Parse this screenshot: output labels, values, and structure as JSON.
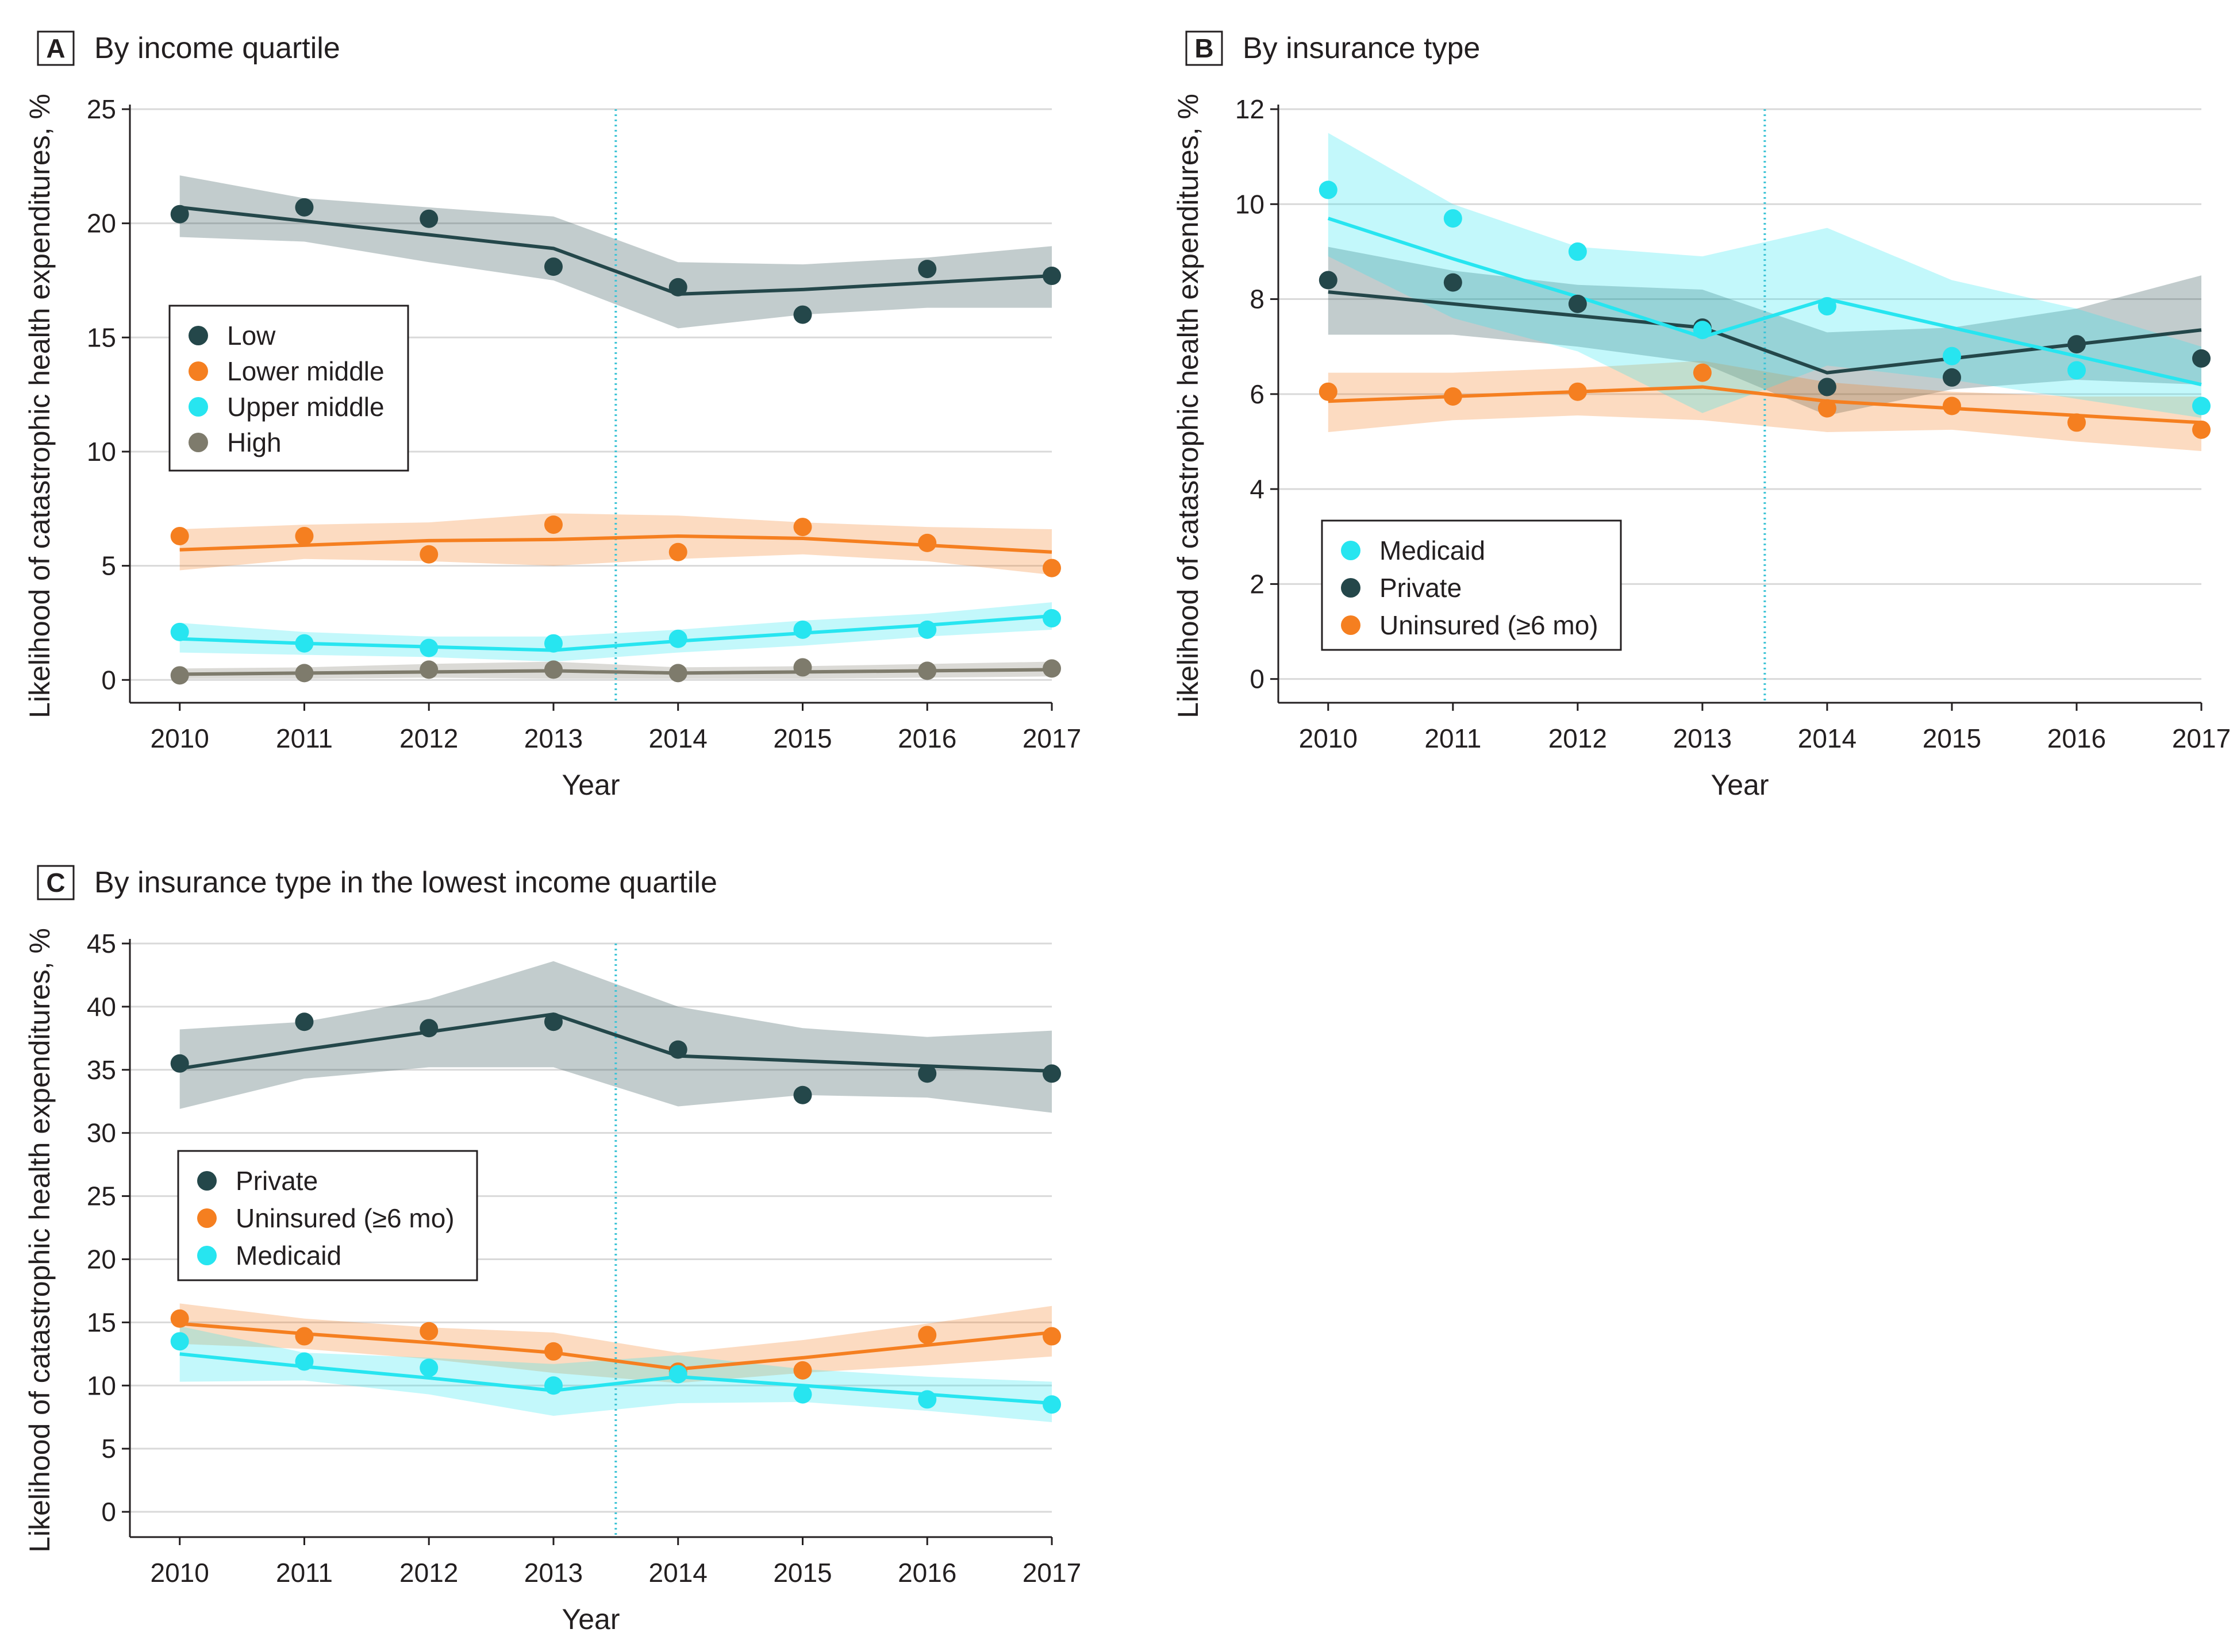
{
  "colors": {
    "low": "#24474a",
    "lower_middle": "#f57f20",
    "upper_middle": "#27e5f0",
    "high": "#7e7b6c",
    "private": "#24474a",
    "uninsured": "#f57f20",
    "medicaid": "#27e5f0",
    "vline": "#3fc4d6",
    "grid": "#d9d9d9",
    "axis": "#231f20"
  },
  "chart_data": [
    {
      "id": "A",
      "letter": "A",
      "type": "scatter",
      "title": "By income quartile",
      "xlabel": "Year",
      "ylabel": "Likelihood of catastrophic health expenditures, %",
      "x": [
        2010,
        2011,
        2012,
        2013,
        2014,
        2015,
        2016,
        2017
      ],
      "xlim": [
        2009.6,
        2017
      ],
      "ylim": [
        -1,
        25
      ],
      "yticks": [
        0,
        5,
        10,
        15,
        20,
        25
      ],
      "policy_line_x": 2013.5,
      "legend_position": "middle-left",
      "series": [
        {
          "key": "low",
          "name": "Low",
          "points": [
            20.4,
            20.7,
            20.2,
            18.1,
            17.2,
            16.0,
            18.0,
            17.7
          ],
          "fit": [
            20.7,
            20.1,
            19.5,
            18.9,
            16.9,
            17.1,
            17.4,
            17.7
          ],
          "ci_upper": [
            22.1,
            21.1,
            20.7,
            20.3,
            18.3,
            18.2,
            18.5,
            19.0
          ],
          "ci_lower": [
            19.4,
            19.2,
            18.3,
            17.5,
            15.4,
            16.0,
            16.3,
            16.3
          ]
        },
        {
          "key": "lower_middle",
          "name": "Lower middle",
          "points": [
            6.3,
            6.3,
            5.5,
            6.8,
            5.6,
            6.7,
            6.0,
            4.9
          ],
          "fit": [
            5.7,
            5.9,
            6.1,
            6.15,
            6.3,
            6.2,
            5.9,
            5.6
          ],
          "ci_upper": [
            6.6,
            6.8,
            6.9,
            7.3,
            7.2,
            6.9,
            6.7,
            6.6
          ],
          "ci_lower": [
            4.8,
            5.3,
            5.2,
            5.0,
            5.3,
            5.5,
            5.2,
            4.6
          ]
        },
        {
          "key": "upper_middle",
          "name": "Upper middle",
          "points": [
            2.1,
            1.6,
            1.4,
            1.6,
            1.8,
            2.2,
            2.2,
            2.7
          ],
          "fit": [
            1.8,
            1.6,
            1.45,
            1.3,
            1.7,
            2.05,
            2.4,
            2.8
          ],
          "ci_upper": [
            2.5,
            2.1,
            1.9,
            1.9,
            2.2,
            2.6,
            2.9,
            3.4
          ],
          "ci_lower": [
            1.2,
            1.1,
            1.0,
            0.8,
            1.2,
            1.5,
            1.9,
            2.2
          ]
        },
        {
          "key": "high",
          "name": "High",
          "points": [
            0.2,
            0.3,
            0.45,
            0.45,
            0.3,
            0.55,
            0.4,
            0.5
          ],
          "fit": [
            0.25,
            0.3,
            0.35,
            0.4,
            0.3,
            0.35,
            0.4,
            0.45
          ],
          "ci_upper": [
            0.5,
            0.55,
            0.7,
            0.8,
            0.55,
            0.6,
            0.7,
            0.8
          ],
          "ci_lower": [
            0.05,
            0.05,
            0.1,
            0.05,
            0.05,
            0.05,
            0.1,
            0.15
          ]
        }
      ]
    },
    {
      "id": "B",
      "letter": "B",
      "type": "scatter",
      "title": "By insurance type",
      "xlabel": "Year",
      "ylabel": "Likelihood of catastrophic health expenditures, %",
      "x": [
        2010,
        2011,
        2012,
        2013,
        2014,
        2015,
        2016,
        2017
      ],
      "xlim": [
        2009.6,
        2017
      ],
      "ylim": [
        -0.5,
        12
      ],
      "yticks": [
        0,
        2,
        4,
        6,
        8,
        10,
        12
      ],
      "policy_line_x": 2013.5,
      "legend_position": "lower-left",
      "series": [
        {
          "key": "private",
          "name": "Private",
          "points": [
            8.4,
            8.35,
            7.9,
            7.4,
            6.15,
            6.35,
            7.05,
            6.75
          ],
          "fit": [
            8.15,
            7.9,
            7.65,
            7.4,
            6.45,
            6.75,
            7.05,
            7.35
          ],
          "ci_upper": [
            9.1,
            8.6,
            8.3,
            8.2,
            7.3,
            7.4,
            7.8,
            8.5
          ],
          "ci_lower": [
            7.25,
            7.25,
            7.0,
            6.65,
            5.55,
            6.1,
            6.3,
            6.2
          ]
        },
        {
          "key": "uninsured",
          "name": "Uninsured (≥6 mo)",
          "points": [
            6.05,
            5.95,
            6.05,
            6.45,
            5.7,
            5.75,
            5.4,
            5.25
          ],
          "fit": [
            5.85,
            5.95,
            6.05,
            6.15,
            5.85,
            5.7,
            5.55,
            5.4
          ],
          "ci_upper": [
            6.45,
            6.45,
            6.55,
            6.7,
            6.25,
            6.05,
            5.95,
            5.95
          ],
          "ci_lower": [
            5.2,
            5.45,
            5.55,
            5.45,
            5.2,
            5.25,
            5.0,
            4.8
          ]
        },
        {
          "key": "medicaid",
          "name": "Medicaid",
          "points": [
            10.3,
            9.7,
            9.0,
            7.35,
            7.85,
            6.8,
            6.5,
            5.75
          ],
          "fit": [
            9.7,
            8.85,
            8.05,
            7.2,
            8.0,
            7.4,
            6.8,
            6.2
          ],
          "ci_upper": [
            11.5,
            10.0,
            9.1,
            8.9,
            9.5,
            8.4,
            7.8,
            7.0
          ],
          "ci_lower": [
            8.9,
            7.6,
            6.9,
            5.6,
            6.6,
            6.3,
            5.9,
            5.5
          ]
        }
      ]
    },
    {
      "id": "C",
      "letter": "C",
      "type": "scatter",
      "title": "By insurance type in the lowest income quartile",
      "xlabel": "Year",
      "ylabel": "Likelihood of catastrophic health expenditures, %",
      "x": [
        2010,
        2011,
        2012,
        2013,
        2014,
        2015,
        2016,
        2017
      ],
      "xlim": [
        2009.6,
        2017
      ],
      "ylim": [
        -2,
        45
      ],
      "yticks": [
        0,
        5,
        10,
        15,
        20,
        25,
        30,
        35,
        40,
        45
      ],
      "policy_line_x": 2013.5,
      "legend_position": "middle-left",
      "series": [
        {
          "key": "private",
          "name": "Private",
          "points": [
            35.5,
            38.8,
            38.3,
            38.8,
            36.6,
            33.0,
            34.7,
            34.7
          ],
          "fit": [
            35.1,
            36.6,
            38.0,
            39.4,
            36.1,
            35.7,
            35.3,
            34.9
          ],
          "ci_upper": [
            38.2,
            38.8,
            40.6,
            43.6,
            40.0,
            38.3,
            37.6,
            38.1
          ],
          "ci_lower": [
            31.9,
            34.3,
            35.2,
            35.2,
            32.1,
            33.0,
            32.8,
            31.6
          ]
        },
        {
          "key": "uninsured",
          "name": "Uninsured (≥6 mo)",
          "points": [
            15.3,
            13.9,
            14.3,
            12.7,
            11.1,
            11.2,
            14.0,
            13.9
          ],
          "fit": [
            14.9,
            14.1,
            13.4,
            12.6,
            11.3,
            12.2,
            13.2,
            14.2
          ],
          "ci_upper": [
            16.5,
            15.3,
            14.6,
            14.2,
            12.6,
            13.6,
            14.9,
            16.3
          ],
          "ci_lower": [
            13.3,
            12.9,
            12.1,
            11.0,
            10.2,
            11.0,
            11.6,
            12.3
          ]
        },
        {
          "key": "medicaid",
          "name": "Medicaid",
          "points": [
            13.5,
            11.9,
            11.4,
            10.0,
            10.9,
            9.3,
            8.9,
            8.5
          ],
          "fit": [
            12.5,
            11.5,
            10.6,
            9.6,
            10.7,
            10.0,
            9.3,
            8.6
          ],
          "ci_upper": [
            14.7,
            12.6,
            12.2,
            11.7,
            12.4,
            11.3,
            10.7,
            10.3
          ],
          "ci_lower": [
            10.3,
            10.4,
            9.3,
            7.6,
            8.6,
            8.7,
            8.0,
            7.1
          ]
        }
      ]
    }
  ]
}
